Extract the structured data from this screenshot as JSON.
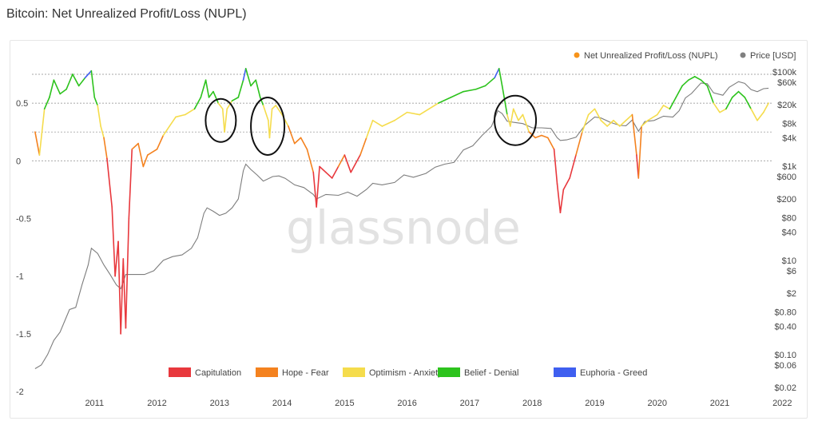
{
  "page": {
    "title": "Bitcoin: Net Unrealized Profit/Loss (NUPL)"
  },
  "watermark": "glassnode",
  "chart_data": {
    "type": "line",
    "title": "Bitcoin: Net Unrealized Profit/Loss (NUPL)",
    "legend_top": [
      {
        "name": "Net Unrealized Profit/Loss (NUPL)",
        "color": "#f7931a"
      },
      {
        "name": "Price [USD]",
        "color": "#808080"
      }
    ],
    "zones": [
      {
        "name": "Capitulation",
        "color": "#e8383d",
        "range": [
          -2,
          0
        ]
      },
      {
        "name": "Hope - Fear",
        "color": "#f4821f",
        "range": [
          0,
          0.25
        ]
      },
      {
        "name": "Optimism - Anxiety",
        "color": "#f5dc4c",
        "range": [
          0.25,
          0.5
        ]
      },
      {
        "name": "Belief - Denial",
        "color": "#2dc31d",
        "range": [
          0.5,
          0.75
        ]
      },
      {
        "name": "Euphoria - Greed",
        "color": "#3f5ff0",
        "range": [
          0.75,
          1
        ]
      }
    ],
    "x_ticks": [
      "2011",
      "2012",
      "2013",
      "2014",
      "2015",
      "2016",
      "2017",
      "2018",
      "2019",
      "2020",
      "2021",
      "2022"
    ],
    "y_left_ticks": [
      "0.5",
      "0",
      "-0.5",
      "-1",
      "-1.5",
      "-2"
    ],
    "y_left_range": [
      -2,
      0.75
    ],
    "y_right_ticks": [
      "$100k",
      "$60k",
      "$20k",
      "$8k",
      "$4k",
      "$1k",
      "$600",
      "$200",
      "$80",
      "$40",
      "$10",
      "$6",
      "$2",
      "$0.80",
      "$0.40",
      "$0.10",
      "$0.06",
      "$0.02"
    ],
    "y_right_scale": "log",
    "series": [
      {
        "name": "Net Unrealized Profit/Loss (NUPL)",
        "points": [
          [
            2010.55,
            0.25
          ],
          [
            2010.62,
            0.05
          ],
          [
            2010.7,
            0.45
          ],
          [
            2010.78,
            0.55
          ],
          [
            2010.85,
            0.7
          ],
          [
            2010.95,
            0.58
          ],
          [
            2011.05,
            0.62
          ],
          [
            2011.15,
            0.75
          ],
          [
            2011.25,
            0.65
          ],
          [
            2011.35,
            0.72
          ],
          [
            2011.45,
            0.78
          ],
          [
            2011.5,
            0.55
          ],
          [
            2011.55,
            0.48
          ],
          [
            2011.6,
            0.3
          ],
          [
            2011.65,
            0.2
          ],
          [
            2011.7,
            0.02
          ],
          [
            2011.78,
            -0.4
          ],
          [
            2011.83,
            -1.0
          ],
          [
            2011.88,
            -0.7
          ],
          [
            2011.92,
            -1.5
          ],
          [
            2011.96,
            -0.85
          ],
          [
            2012.0,
            -1.45
          ],
          [
            2012.05,
            -0.5
          ],
          [
            2012.1,
            0.1
          ],
          [
            2012.2,
            0.15
          ],
          [
            2012.28,
            -0.05
          ],
          [
            2012.35,
            0.05
          ],
          [
            2012.5,
            0.1
          ],
          [
            2012.6,
            0.22
          ],
          [
            2012.7,
            0.3
          ],
          [
            2012.8,
            0.38
          ],
          [
            2012.95,
            0.4
          ],
          [
            2013.1,
            0.45
          ],
          [
            2013.2,
            0.55
          ],
          [
            2013.28,
            0.7
          ],
          [
            2013.33,
            0.55
          ],
          [
            2013.4,
            0.6
          ],
          [
            2013.48,
            0.5
          ],
          [
            2013.55,
            0.45
          ],
          [
            2013.58,
            0.25
          ],
          [
            2013.62,
            0.45
          ],
          [
            2013.7,
            0.52
          ],
          [
            2013.8,
            0.55
          ],
          [
            2013.88,
            0.7
          ],
          [
            2013.92,
            0.8
          ],
          [
            2014.0,
            0.65
          ],
          [
            2014.08,
            0.7
          ],
          [
            2014.15,
            0.55
          ],
          [
            2014.2,
            0.48
          ],
          [
            2014.28,
            0.35
          ],
          [
            2014.3,
            0.2
          ],
          [
            2014.34,
            0.45
          ],
          [
            2014.4,
            0.48
          ],
          [
            2014.5,
            0.4
          ],
          [
            2014.6,
            0.3
          ],
          [
            2014.7,
            0.15
          ],
          [
            2014.8,
            0.2
          ],
          [
            2014.9,
            0.1
          ],
          [
            2015.0,
            -0.1
          ],
          [
            2015.05,
            -0.4
          ],
          [
            2015.1,
            -0.05
          ],
          [
            2015.2,
            -0.1
          ],
          [
            2015.3,
            -0.15
          ],
          [
            2015.4,
            -0.05
          ],
          [
            2015.5,
            0.05
          ],
          [
            2015.6,
            -0.1
          ],
          [
            2015.75,
            0.05
          ],
          [
            2015.85,
            0.2
          ],
          [
            2015.95,
            0.35
          ],
          [
            2016.1,
            0.3
          ],
          [
            2016.3,
            0.35
          ],
          [
            2016.5,
            0.42
          ],
          [
            2016.7,
            0.4
          ],
          [
            2016.85,
            0.45
          ],
          [
            2017.0,
            0.5
          ],
          [
            2017.2,
            0.55
          ],
          [
            2017.4,
            0.6
          ],
          [
            2017.6,
            0.62
          ],
          [
            2017.75,
            0.65
          ],
          [
            2017.9,
            0.72
          ],
          [
            2017.97,
            0.8
          ],
          [
            2018.02,
            0.65
          ],
          [
            2018.1,
            0.4
          ],
          [
            2018.15,
            0.3
          ],
          [
            2018.2,
            0.45
          ],
          [
            2018.28,
            0.35
          ],
          [
            2018.35,
            0.4
          ],
          [
            2018.45,
            0.25
          ],
          [
            2018.55,
            0.2
          ],
          [
            2018.65,
            0.22
          ],
          [
            2018.75,
            0.2
          ],
          [
            2018.85,
            0.1
          ],
          [
            2018.9,
            -0.2
          ],
          [
            2018.95,
            -0.45
          ],
          [
            2019.0,
            -0.25
          ],
          [
            2019.1,
            -0.15
          ],
          [
            2019.2,
            0.05
          ],
          [
            2019.3,
            0.25
          ],
          [
            2019.4,
            0.4
          ],
          [
            2019.5,
            0.45
          ],
          [
            2019.6,
            0.35
          ],
          [
            2019.7,
            0.3
          ],
          [
            2019.8,
            0.35
          ],
          [
            2019.9,
            0.3
          ],
          [
            2020.0,
            0.35
          ],
          [
            2020.1,
            0.4
          ],
          [
            2020.17,
            0.05
          ],
          [
            2020.2,
            -0.15
          ],
          [
            2020.25,
            0.3
          ],
          [
            2020.35,
            0.35
          ],
          [
            2020.5,
            0.4
          ],
          [
            2020.6,
            0.48
          ],
          [
            2020.7,
            0.45
          ],
          [
            2020.8,
            0.55
          ],
          [
            2020.9,
            0.65
          ],
          [
            2021.0,
            0.7
          ],
          [
            2021.1,
            0.73
          ],
          [
            2021.2,
            0.7
          ],
          [
            2021.3,
            0.65
          ],
          [
            2021.4,
            0.5
          ],
          [
            2021.5,
            0.42
          ],
          [
            2021.6,
            0.45
          ],
          [
            2021.7,
            0.55
          ],
          [
            2021.8,
            0.6
          ],
          [
            2021.9,
            0.55
          ],
          [
            2022.0,
            0.45
          ],
          [
            2022.1,
            0.35
          ],
          [
            2022.2,
            0.42
          ],
          [
            2022.28,
            0.5
          ]
        ]
      },
      {
        "name": "Price [USD]",
        "points": [
          [
            2010.55,
            0.05
          ],
          [
            2010.65,
            0.06
          ],
          [
            2010.75,
            0.1
          ],
          [
            2010.85,
            0.2
          ],
          [
            2010.95,
            0.3
          ],
          [
            2011.1,
            0.9
          ],
          [
            2011.2,
            1
          ],
          [
            2011.3,
            3
          ],
          [
            2011.4,
            8
          ],
          [
            2011.45,
            18
          ],
          [
            2011.55,
            14
          ],
          [
            2011.65,
            8
          ],
          [
            2011.75,
            5
          ],
          [
            2011.85,
            3
          ],
          [
            2011.92,
            2.5
          ],
          [
            2012.0,
            5
          ],
          [
            2012.15,
            5
          ],
          [
            2012.3,
            5
          ],
          [
            2012.45,
            6
          ],
          [
            2012.6,
            10
          ],
          [
            2012.75,
            12
          ],
          [
            2012.9,
            13
          ],
          [
            2013.05,
            18
          ],
          [
            2013.15,
            30
          ],
          [
            2013.25,
            100
          ],
          [
            2013.3,
            130
          ],
          [
            2013.4,
            110
          ],
          [
            2013.5,
            90
          ],
          [
            2013.6,
            100
          ],
          [
            2013.7,
            130
          ],
          [
            2013.8,
            200
          ],
          [
            2013.88,
            800
          ],
          [
            2013.92,
            1100
          ],
          [
            2014.0,
            850
          ],
          [
            2014.1,
            650
          ],
          [
            2014.2,
            480
          ],
          [
            2014.35,
            600
          ],
          [
            2014.45,
            620
          ],
          [
            2014.55,
            550
          ],
          [
            2014.7,
            400
          ],
          [
            2014.85,
            350
          ],
          [
            2015.0,
            250
          ],
          [
            2015.05,
            200
          ],
          [
            2015.2,
            250
          ],
          [
            2015.4,
            240
          ],
          [
            2015.55,
            280
          ],
          [
            2015.7,
            230
          ],
          [
            2015.85,
            320
          ],
          [
            2015.95,
            430
          ],
          [
            2016.1,
            400
          ],
          [
            2016.3,
            450
          ],
          [
            2016.45,
            650
          ],
          [
            2016.6,
            580
          ],
          [
            2016.8,
            700
          ],
          [
            2016.95,
            950
          ],
          [
            2017.1,
            1100
          ],
          [
            2017.25,
            1200
          ],
          [
            2017.4,
            2200
          ],
          [
            2017.55,
            2700
          ],
          [
            2017.7,
            4500
          ],
          [
            2017.85,
            7000
          ],
          [
            2017.95,
            15000
          ],
          [
            2018.02,
            13000
          ],
          [
            2018.1,
            9000
          ],
          [
            2018.2,
            8500
          ],
          [
            2018.35,
            8000
          ],
          [
            2018.5,
            6500
          ],
          [
            2018.65,
            6500
          ],
          [
            2018.8,
            6300
          ],
          [
            2018.9,
            4000
          ],
          [
            2018.95,
            3500
          ],
          [
            2019.05,
            3600
          ],
          [
            2019.2,
            4100
          ],
          [
            2019.35,
            7500
          ],
          [
            2019.5,
            11000
          ],
          [
            2019.6,
            10500
          ],
          [
            2019.75,
            8500
          ],
          [
            2019.9,
            7300
          ],
          [
            2020.0,
            7200
          ],
          [
            2020.1,
            9500
          ],
          [
            2020.2,
            5500
          ],
          [
            2020.3,
            8800
          ],
          [
            2020.45,
            9300
          ],
          [
            2020.6,
            11500
          ],
          [
            2020.75,
            11000
          ],
          [
            2020.85,
            15000
          ],
          [
            2020.95,
            28000
          ],
          [
            2021.05,
            35000
          ],
          [
            2021.2,
            58000
          ],
          [
            2021.3,
            56000
          ],
          [
            2021.4,
            36000
          ],
          [
            2021.55,
            32000
          ],
          [
            2021.65,
            47000
          ],
          [
            2021.8,
            62000
          ],
          [
            2021.9,
            57000
          ],
          [
            2022.0,
            42000
          ],
          [
            2022.1,
            38000
          ],
          [
            2022.2,
            44000
          ],
          [
            2022.28,
            45000
          ]
        ]
      }
    ],
    "annotations": [
      {
        "shape": "ellipse",
        "center": [
          2013.52,
          0.35
        ]
      },
      {
        "shape": "ellipse",
        "center": [
          2014.27,
          0.3
        ]
      },
      {
        "shape": "ellipse",
        "center": [
          2018.23,
          0.35
        ]
      }
    ]
  }
}
